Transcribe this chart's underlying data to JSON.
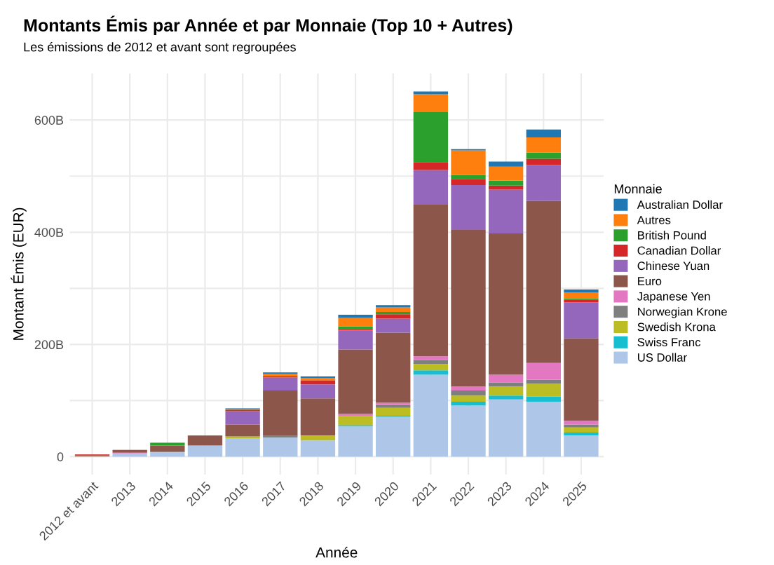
{
  "chart_data": {
    "type": "bar",
    "stacked": true,
    "title": "Montants Émis par Année et par Monnaie (Top 10 + Autres)",
    "subtitle": "Les émissions de 2012 et avant sont regroupées",
    "xlabel": "Année",
    "ylabel": "Montant Émis (EUR)",
    "legend_title": "Monnaie",
    "legend": "right",
    "grid": true,
    "categories": [
      "2012 et avant",
      "2013",
      "2014",
      "2015",
      "2016",
      "2017",
      "2018",
      "2019",
      "2020",
      "2021",
      "2022",
      "2023",
      "2024",
      "2025"
    ],
    "ylim": [
      -32,
      683
    ],
    "yticks": [
      {
        "value": 0,
        "label": "0"
      },
      {
        "value": 100,
        "label": null
      },
      {
        "value": 200,
        "label": "200B"
      },
      {
        "value": 300,
        "label": null
      },
      {
        "value": 400,
        "label": "400B"
      },
      {
        "value": 500,
        "label": null
      },
      {
        "value": 600,
        "label": "600B"
      }
    ],
    "series": [
      {
        "name": "US Dollar",
        "color": "#aec7e8",
        "values": [
          null,
          6,
          8,
          20,
          33,
          34,
          29,
          54,
          71,
          146,
          91,
          102,
          98,
          38
        ]
      },
      {
        "name": "Swiss Franc",
        "color": "#17becf",
        "values": [
          0,
          0,
          0,
          0,
          0,
          0,
          0,
          2,
          2,
          8,
          7,
          7,
          9,
          5
        ]
      },
      {
        "name": "Swedish Krona",
        "color": "#bcbd22",
        "values": [
          1,
          0,
          0,
          0,
          3,
          0,
          9,
          16,
          14,
          11,
          11,
          16,
          23,
          9
        ]
      },
      {
        "name": "Norwegian Krone",
        "color": "#7f7f7f",
        "values": [
          0,
          0,
          1,
          null,
          0,
          3,
          0,
          0,
          5,
          7,
          9,
          7,
          7,
          5
        ]
      },
      {
        "name": "Japanese Yen",
        "color": "#e377c2",
        "values": [
          0,
          1,
          0,
          0,
          0,
          0,
          0,
          4,
          4,
          7,
          7,
          14,
          30,
          7
        ]
      },
      {
        "name": "Euro",
        "color": "#8c564b",
        "values": [
          1,
          5,
          11,
          17,
          21,
          81,
          66,
          115,
          125,
          270,
          279,
          252,
          289,
          147
        ]
      },
      {
        "name": "Chinese Yuan",
        "color": "#9467bd",
        "values": [
          0,
          0,
          0,
          0,
          24,
          23,
          25,
          34,
          25,
          62,
          80,
          78,
          64,
          64
        ]
      },
      {
        "name": "Canadian Dollar",
        "color": "#d62728",
        "values": [
          2,
          0,
          null,
          0,
          2,
          2,
          7,
          2,
          8,
          14,
          11,
          7,
          11,
          5
        ]
      },
      {
        "name": "British Pound",
        "color": "#2ca02c",
        "values": [
          0,
          0,
          5,
          1,
          0,
          0,
          0,
          5,
          4,
          89,
          7,
          9,
          11,
          2
        ]
      },
      {
        "name": "Autres",
        "color": "#ff7f0e",
        "values": [
          0,
          0,
          0,
          0,
          1,
          5,
          4,
          16,
          8,
          32,
          44,
          25,
          27,
          11
        ]
      },
      {
        "name": "Australian Dollar",
        "color": "#1f77b4",
        "values": [
          0,
          0,
          0,
          0,
          2,
          2,
          3,
          5,
          4,
          5,
          2,
          9,
          14,
          5
        ]
      }
    ]
  }
}
